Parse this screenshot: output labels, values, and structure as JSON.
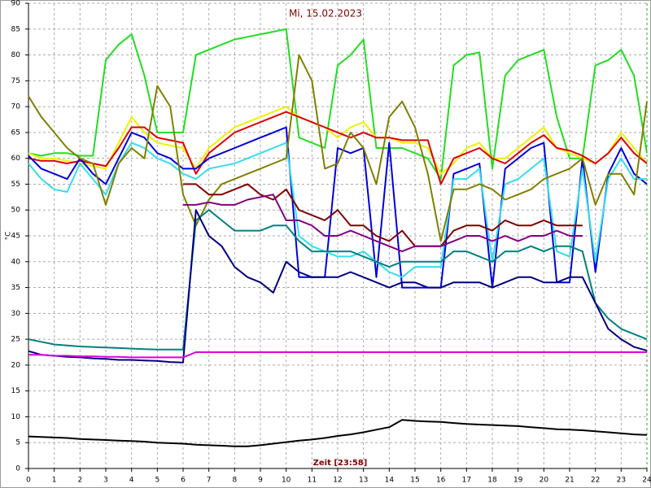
{
  "chart_data": {
    "type": "line",
    "title": "Mi, 15.02.2023",
    "x_label": "Zeit [23:58]",
    "y_label": "°C",
    "x": [
      0,
      0.5,
      1,
      1.5,
      2,
      2.5,
      3,
      3.5,
      4,
      4.5,
      5,
      5.5,
      6,
      6.5,
      7,
      7.5,
      8,
      8.5,
      9,
      9.5,
      10,
      10.5,
      11,
      11.5,
      12,
      12.5,
      13,
      13.5,
      14,
      14.5,
      15,
      15.5,
      16,
      16.5,
      17,
      17.5,
      18,
      18.5,
      19,
      19.5,
      20,
      20.5,
      21,
      21.5,
      22,
      22.5,
      23,
      23.5,
      24
    ],
    "xlim": [
      0,
      24
    ],
    "xticks": [
      0,
      1,
      2,
      3,
      4,
      5,
      6,
      7,
      8,
      9,
      10,
      11,
      12,
      13,
      14,
      15,
      16,
      17,
      18,
      19,
      20,
      21,
      22,
      23,
      24
    ],
    "ylim": [
      0,
      90
    ],
    "yticks": [
      0,
      5,
      10,
      15,
      20,
      25,
      30,
      35,
      40,
      45,
      50,
      55,
      60,
      65,
      70,
      75,
      80,
      85,
      90
    ],
    "grid": true,
    "series": [
      {
        "color": "#22dd22",
        "values": [
          61,
          60.5,
          61,
          61,
          60.5,
          60.5,
          79,
          82,
          84,
          76,
          65,
          65,
          65,
          80,
          81,
          82,
          83,
          83.5,
          84,
          84.5,
          85,
          64,
          63,
          62,
          78,
          80,
          83,
          62,
          62,
          62,
          61,
          60,
          56,
          78,
          80,
          80.5,
          58,
          76,
          79,
          80,
          81,
          68,
          60,
          60,
          78,
          79,
          81,
          76,
          61
        ]
      },
      {
        "color": "#f0f000",
        "values": [
          61,
          60,
          60,
          59.5,
          59,
          58.5,
          58,
          63,
          68,
          65,
          63,
          62.5,
          62,
          58,
          62,
          64,
          66,
          67,
          68,
          69,
          70,
          68,
          67,
          66,
          64,
          66,
          67,
          64,
          64,
          63,
          63,
          62,
          57,
          59,
          62,
          63,
          60,
          60,
          62,
          64,
          66,
          62,
          61,
          60,
          59,
          61,
          65,
          62,
          59
        ]
      },
      {
        "color": "#dd0000",
        "values": [
          60,
          59.5,
          59.5,
          59,
          59.5,
          59,
          58.5,
          62,
          66,
          66,
          64,
          63.5,
          63,
          57,
          61,
          63,
          65,
          66,
          67,
          68,
          69,
          68,
          67,
          66,
          65,
          64,
          65,
          64,
          64,
          63.5,
          63.5,
          63.5,
          55,
          60,
          61,
          62,
          60,
          59,
          61,
          63,
          64.5,
          62,
          61.5,
          60.5,
          59,
          61,
          64,
          61,
          59
        ]
      },
      {
        "color": "#0000dd",
        "values": [
          60.5,
          58,
          57,
          56,
          60,
          57,
          55,
          60,
          65,
          64,
          61,
          60,
          58,
          58,
          60,
          61,
          62,
          63,
          64,
          65,
          66,
          37,
          37,
          37,
          62,
          61,
          62,
          37,
          63,
          35,
          35,
          35,
          35,
          57,
          58,
          59,
          35,
          58,
          60,
          62,
          63,
          36,
          36,
          60,
          38,
          57,
          62,
          57,
          55
        ]
      },
      {
        "color": "#33ddee",
        "values": [
          59,
          56,
          54,
          53.5,
          59,
          56,
          53,
          59,
          63,
          62,
          60,
          59,
          57,
          56,
          58,
          58.5,
          59,
          60,
          61,
          62,
          63,
          45,
          43,
          42,
          41,
          41,
          42,
          40,
          38,
          37,
          39,
          39,
          39,
          56,
          56,
          58,
          40,
          55,
          56,
          58,
          60,
          42,
          41,
          58,
          40,
          56,
          60,
          56,
          56
        ]
      },
      {
        "color": "#808000",
        "values": [
          72,
          68,
          65,
          62,
          60,
          59,
          51,
          59,
          62,
          60,
          74,
          70,
          53,
          47,
          52,
          55,
          56,
          57,
          58,
          59,
          60,
          80,
          75,
          58,
          59,
          65,
          62,
          55,
          68,
          71,
          66,
          57,
          44,
          54,
          54,
          55,
          54,
          52,
          53,
          54,
          56,
          57,
          58,
          60,
          51,
          57,
          57,
          53,
          71
        ]
      },
      {
        "color": "#800000",
        "values": [
          null,
          null,
          null,
          null,
          null,
          null,
          null,
          null,
          null,
          null,
          null,
          null,
          55,
          55,
          53,
          53,
          54,
          55,
          53,
          52,
          54,
          50,
          49,
          48,
          50,
          47,
          47,
          45,
          44,
          46,
          43,
          43,
          43,
          46,
          47,
          47,
          46,
          48,
          47,
          47,
          48,
          47,
          47,
          47,
          null,
          null,
          null,
          null,
          null
        ]
      },
      {
        "color": "#800080",
        "values": [
          null,
          null,
          null,
          null,
          null,
          null,
          null,
          null,
          null,
          null,
          null,
          null,
          51,
          51,
          51.5,
          51,
          51,
          52,
          52.5,
          53,
          48,
          48,
          47,
          45,
          45,
          46,
          45,
          44,
          43,
          42,
          43,
          43,
          43,
          44,
          45,
          45,
          44,
          45,
          44,
          45,
          45,
          46,
          45,
          45,
          null,
          null,
          null,
          null,
          null
        ]
      },
      {
        "color": "#008080",
        "values": [
          25,
          24.5,
          24,
          23.8,
          23.6,
          23.5,
          23.4,
          23.3,
          23.2,
          23.1,
          23,
          23,
          23,
          48,
          50,
          48,
          46,
          46,
          46,
          47,
          47,
          44,
          42,
          42,
          42,
          42,
          41,
          40,
          39,
          40,
          40,
          40,
          40,
          42,
          42,
          41,
          40,
          42,
          42,
          43,
          42,
          43,
          43,
          42,
          32,
          29,
          27,
          26,
          25
        ]
      },
      {
        "color": "#000080",
        "values": [
          22.7,
          22,
          21.8,
          21.6,
          21.5,
          21.3,
          21.2,
          21,
          21,
          20.9,
          20.8,
          20.6,
          20.5,
          50,
          45,
          43,
          39,
          37,
          36,
          34,
          40,
          38,
          37,
          37,
          37,
          38,
          37,
          36,
          35,
          36,
          36,
          35,
          35,
          36,
          36,
          36,
          35,
          36,
          37,
          37,
          36,
          36,
          37,
          37,
          32,
          27,
          25,
          23.5,
          22.8
        ]
      },
      {
        "color": "#dd00dd",
        "values": [
          22,
          22,
          21.8,
          21.8,
          21.7,
          21.7,
          21.6,
          21.6,
          21.5,
          21.5,
          21.5,
          21.5,
          21.5,
          22.5,
          22.5,
          22.5,
          22.5,
          22.5,
          22.5,
          22.5,
          22.5,
          22.5,
          22.5,
          22.5,
          22.5,
          22.5,
          22.5,
          22.5,
          22.5,
          22.5,
          22.5,
          22.5,
          22.5,
          22.5,
          22.5,
          22.5,
          22.5,
          22.5,
          22.5,
          22.5,
          22.5,
          22.5,
          22.5,
          22.5,
          22.5,
          22.5,
          22.5,
          22.5,
          22.5
        ]
      },
      {
        "color": "#000000",
        "values": [
          6.2,
          6.1,
          6,
          5.9,
          5.7,
          5.6,
          5.5,
          5.4,
          5.3,
          5.2,
          5,
          4.9,
          4.8,
          4.6,
          4.5,
          4.4,
          4.3,
          4.3,
          4.5,
          4.8,
          5.1,
          5.4,
          5.6,
          5.9,
          6.3,
          6.6,
          7,
          7.5,
          8,
          9.4,
          9.2,
          9.1,
          9,
          8.8,
          8.6,
          8.5,
          8.4,
          8.3,
          8.2,
          8,
          7.8,
          7.6,
          7.5,
          7.4,
          7.2,
          7,
          6.8,
          6.6,
          6.5
        ]
      }
    ]
  }
}
